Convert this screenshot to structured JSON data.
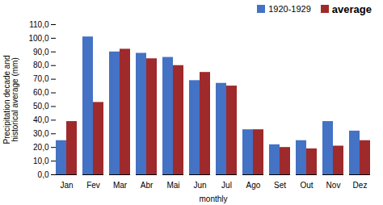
{
  "chart_data": {
    "type": "bar",
    "categories": [
      "Jan",
      "Fev",
      "Mar",
      "Abr",
      "Mai",
      "Jun",
      "Jul",
      "Ago",
      "Set",
      "Out",
      "Nov",
      "Dez"
    ],
    "series": [
      {
        "name": "1920-1929",
        "color": "#4472C4",
        "values": [
          25,
          101,
          90,
          89,
          86,
          69,
          67,
          33,
          22,
          25,
          39,
          32
        ]
      },
      {
        "name": "average",
        "color": "#9E2A2B",
        "values": [
          39,
          53,
          92,
          85,
          80,
          75,
          65,
          33,
          20,
          19,
          21,
          25
        ]
      }
    ],
    "xlabel": "monthly",
    "ylabel": "Precipitation decade and\nhistorical average (mm)",
    "ylim": [
      0,
      110
    ],
    "yticks": [
      {
        "value": 0,
        "label": "0,0"
      },
      {
        "value": 10,
        "label": "10,0"
      },
      {
        "value": 20,
        "label": "20,0"
      },
      {
        "value": 30,
        "label": "30,0"
      },
      {
        "value": 40,
        "label": "40,0"
      },
      {
        "value": 50,
        "label": "50,0"
      },
      {
        "value": 60,
        "label": "60,0"
      },
      {
        "value": 70,
        "label": "70,0"
      },
      {
        "value": 80,
        "label": "80,0"
      },
      {
        "value": 90,
        "label": "90,0"
      },
      {
        "value": 100,
        "label": "100,0"
      },
      {
        "value": 110,
        "label": "110,0"
      }
    ],
    "legend": "upper right"
  }
}
